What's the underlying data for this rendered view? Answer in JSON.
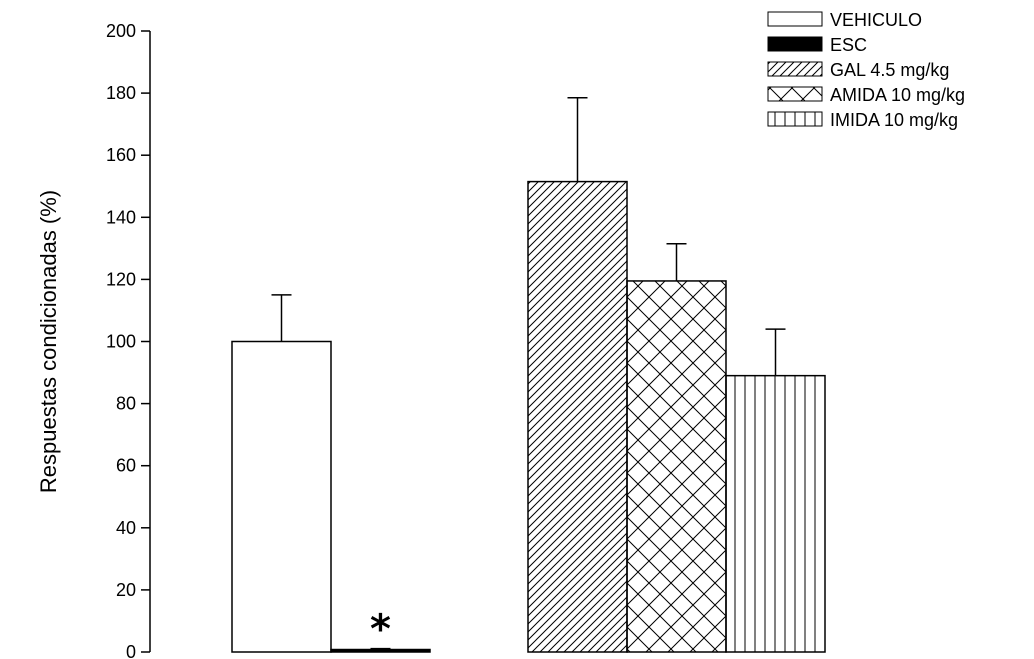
{
  "chart_data": {
    "type": "bar",
    "title": "",
    "ylabel": "Respuestas condicionadas (%)",
    "xlabel": "",
    "ylim": [
      0,
      200
    ],
    "yticks": [
      0,
      20,
      40,
      60,
      80,
      100,
      120,
      140,
      160,
      180,
      200
    ],
    "grid": false,
    "legend_position": "top-right",
    "series": [
      {
        "name": "VEHICULO",
        "value": 100,
        "error": 15,
        "pattern": "white",
        "group": 0
      },
      {
        "name": "ESC",
        "value": 0.8,
        "error": 0.3,
        "pattern": "solid-black",
        "group": 0
      },
      {
        "name": "GAL 4.5 mg/kg",
        "value": 151.5,
        "error": 27,
        "pattern": "diagonal-hatch",
        "group": 1
      },
      {
        "name": "AMIDA 10 mg/kg",
        "value": 119.5,
        "error": 12,
        "pattern": "crosshatch",
        "group": 1
      },
      {
        "name": "IMIDA 10 mg/kg",
        "value": 89,
        "error": 15,
        "pattern": "vertical-lines",
        "group": 1
      }
    ],
    "legend_labels": [
      "VEHICULO",
      "ESC",
      "GAL  4.5 mg/kg",
      "AMIDA 10 mg/kg",
      "IMIDA 10 mg/kg"
    ],
    "annotations": [
      {
        "text": "*",
        "series": "ESC"
      }
    ]
  }
}
